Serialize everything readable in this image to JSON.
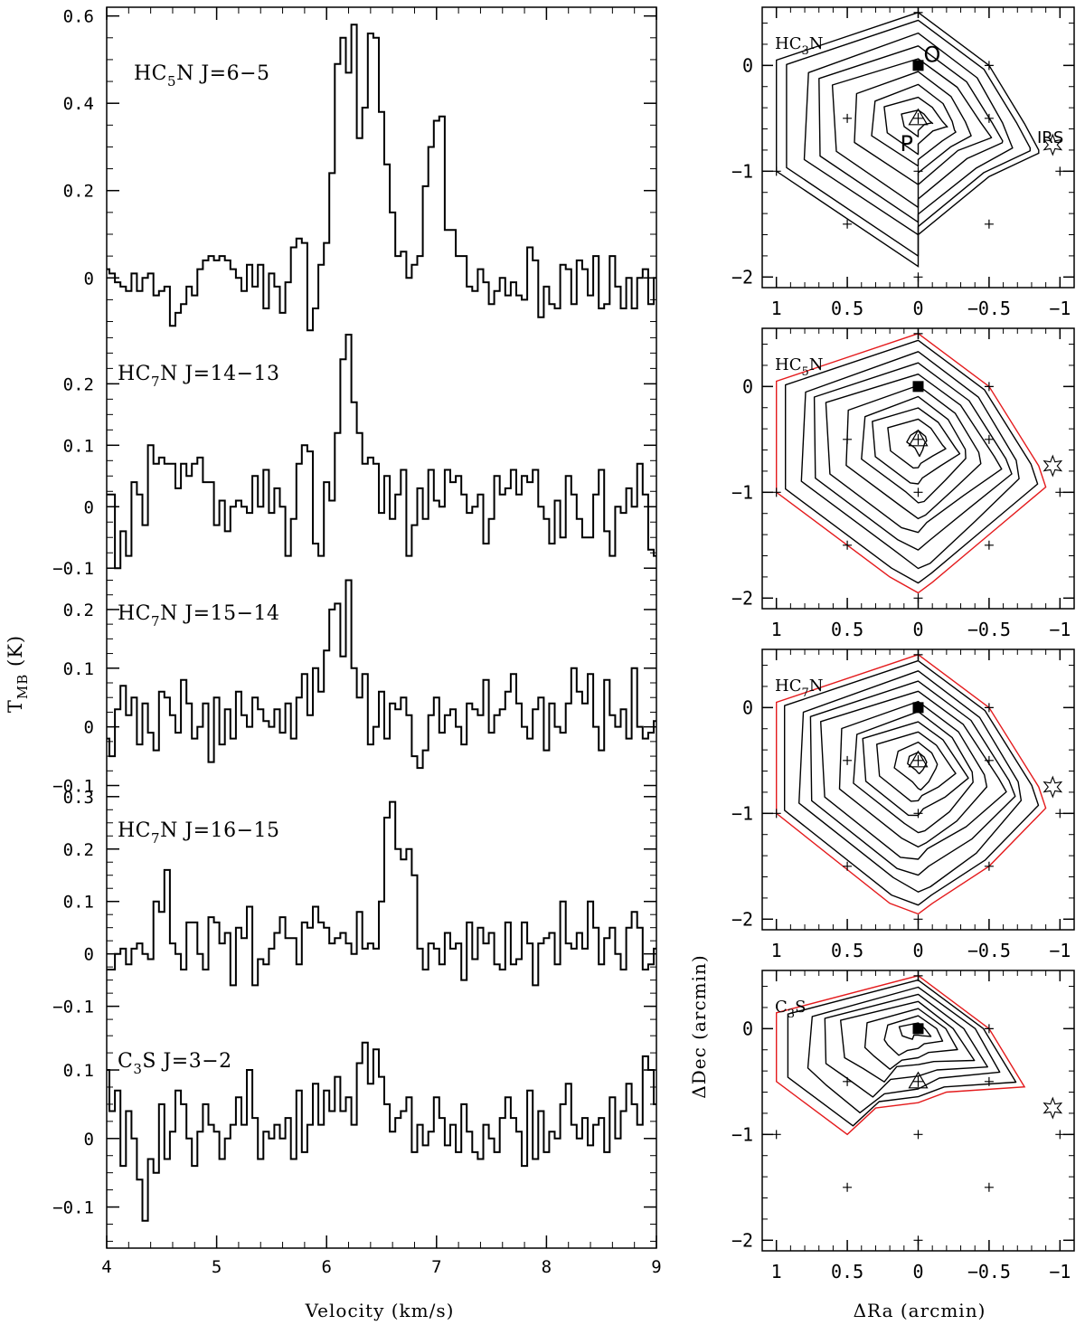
{
  "chart_data": [
    {
      "type": "line",
      "style": "step",
      "panel": "spectrum",
      "label": "HC5N J=6−5",
      "label_parts": [
        "HC",
        "5",
        "N J=6−5"
      ],
      "xlim": [
        4,
        9
      ],
      "ylim": [
        -0.13,
        0.62
      ],
      "yticks": [
        0,
        0.2,
        0.4,
        0.6
      ],
      "ytick_labels": [
        "0",
        "0.2",
        "0.4",
        "0.6"
      ],
      "x_start": 4.0,
      "x_step": 0.05,
      "values": [
        0.02,
        0.01,
        -0.01,
        -0.02,
        -0.03,
        0.01,
        -0.03,
        0.0,
        0.01,
        -0.04,
        -0.03,
        -0.02,
        -0.11,
        -0.08,
        -0.06,
        -0.02,
        -0.04,
        0.02,
        0.04,
        0.05,
        0.04,
        0.05,
        0.04,
        0.02,
        0.0,
        -0.03,
        0.03,
        -0.02,
        0.03,
        -0.07,
        0.01,
        -0.02,
        -0.08,
        -0.01,
        0.07,
        0.09,
        0.08,
        -0.12,
        -0.07,
        0.03,
        0.08,
        0.24,
        0.49,
        0.55,
        0.47,
        0.58,
        0.32,
        0.39,
        0.56,
        0.55,
        0.38,
        0.26,
        0.15,
        0.05,
        0.06,
        0.0,
        0.03,
        0.05,
        0.21,
        0.3,
        0.36,
        0.37,
        0.11,
        0.11,
        0.05,
        0.05,
        -0.02,
        -0.03,
        0.02,
        -0.01,
        -0.06,
        -0.03,
        0.0,
        -0.04,
        -0.01,
        -0.04,
        -0.05,
        0.07,
        0.04,
        -0.09,
        -0.02,
        -0.06,
        -0.07,
        0.03,
        0.02,
        -0.06,
        0.04,
        0.02,
        -0.04,
        0.05,
        -0.07,
        -0.06,
        0.05,
        -0.02,
        -0.07,
        0.0,
        -0.07,
        0.0,
        0.02,
        -0.06,
        0.0
      ]
    },
    {
      "type": "line",
      "style": "step",
      "panel": "spectrum",
      "label": "HC7N J=14−13",
      "label_parts": [
        "HC",
        "7",
        "N J=14−13"
      ],
      "xlim": [
        4,
        9
      ],
      "ylim": [
        -0.11,
        0.28
      ],
      "yticks": [
        -0.1,
        0,
        0.1,
        0.2
      ],
      "ytick_labels": [
        "−0.1",
        "0",
        "0.1",
        "0.2"
      ],
      "x_start": 4.0,
      "x_step": 0.05,
      "values": [
        0.02,
        0.02,
        -0.1,
        -0.04,
        -0.08,
        0.04,
        0.02,
        -0.03,
        0.1,
        0.07,
        0.08,
        0.07,
        0.07,
        0.03,
        0.07,
        0.05,
        0.07,
        0.08,
        0.04,
        0.04,
        -0.03,
        0.01,
        -0.04,
        0.0,
        0.01,
        0.0,
        -0.01,
        0.05,
        0.0,
        0.06,
        -0.01,
        0.03,
        0.0,
        -0.08,
        -0.02,
        0.07,
        0.1,
        0.09,
        -0.06,
        -0.08,
        0.04,
        0.01,
        0.12,
        0.24,
        0.28,
        0.17,
        0.12,
        0.07,
        0.08,
        0.07,
        -0.01,
        0.05,
        -0.02,
        0.02,
        0.06,
        -0.08,
        -0.03,
        0.03,
        -0.02,
        0.06,
        0.01,
        0.0,
        0.06,
        0.04,
        0.05,
        0.02,
        -0.01,
        0.0,
        0.02,
        -0.06,
        -0.02,
        0.05,
        0.02,
        0.03,
        0.06,
        0.02,
        0.05,
        0.04,
        0.06,
        0.0,
        -0.02,
        -0.06,
        0.01,
        -0.05,
        0.05,
        0.02,
        -0.02,
        -0.05,
        -0.05,
        0.02,
        0.06,
        -0.04,
        -0.08,
        0.0,
        -0.01,
        0.03,
        0.0,
        0.07,
        0.02,
        -0.07,
        -0.08
      ]
    },
    {
      "type": "line",
      "style": "step",
      "panel": "spectrum",
      "label": "HC7N J=15−14",
      "label_parts": [
        "HC",
        "7",
        "N J=15−14"
      ],
      "xlim": [
        4,
        9
      ],
      "ylim": [
        -0.11,
        0.26
      ],
      "yticks": [
        -0.1,
        0,
        0.1,
        0.2
      ],
      "ytick_labels": [
        "−0.1",
        "0",
        "0.1",
        "0.2"
      ],
      "x_start": 4.0,
      "x_step": 0.05,
      "values": [
        -0.02,
        -0.05,
        0.03,
        0.07,
        0.02,
        0.05,
        -0.03,
        0.04,
        -0.01,
        -0.04,
        0.06,
        0.05,
        0.02,
        -0.01,
        0.08,
        0.04,
        -0.02,
        0.0,
        0.04,
        -0.06,
        0.05,
        -0.03,
        0.03,
        -0.02,
        0.06,
        0.02,
        0.0,
        0.05,
        0.03,
        0.01,
        0.0,
        0.03,
        -0.01,
        0.04,
        -0.02,
        0.05,
        0.09,
        0.02,
        0.1,
        0.06,
        0.13,
        0.2,
        0.21,
        0.12,
        0.25,
        0.1,
        0.05,
        0.09,
        -0.03,
        0.0,
        0.06,
        -0.02,
        0.04,
        0.03,
        0.05,
        0.02,
        -0.05,
        -0.07,
        -0.04,
        0.02,
        0.05,
        -0.01,
        0.02,
        0.03,
        0.0,
        -0.03,
        0.04,
        0.03,
        0.02,
        0.08,
        -0.01,
        0.02,
        0.03,
        0.06,
        0.09,
        0.04,
        0.0,
        -0.02,
        0.03,
        0.05,
        -0.04,
        0.04,
        0.0,
        -0.01,
        0.04,
        0.1,
        0.06,
        0.04,
        0.09,
        0.0,
        -0.04,
        0.08,
        0.02,
        0.0,
        0.03,
        -0.02,
        0.1,
        0.0,
        -0.02,
        -0.01,
        0.01
      ]
    },
    {
      "type": "line",
      "style": "step",
      "panel": "spectrum",
      "label": "HC7N J=16−15",
      "label_parts": [
        "HC",
        "7",
        "N J=16−15"
      ],
      "xlim": [
        4,
        9
      ],
      "ylim": [
        -0.13,
        0.31
      ],
      "yticks": [
        -0.1,
        0,
        0.1,
        0.2,
        0.3
      ],
      "ytick_labels": [
        "−0.1",
        "0",
        "0.1",
        "0.2",
        "0.3"
      ],
      "x_start": 4.0,
      "x_step": 0.05,
      "values": [
        -0.03,
        -0.03,
        0.0,
        0.01,
        -0.02,
        0.01,
        0.02,
        0.0,
        -0.01,
        0.1,
        0.08,
        0.16,
        0.02,
        0.0,
        -0.03,
        0.06,
        0.06,
        0.0,
        -0.03,
        0.07,
        0.06,
        0.02,
        0.04,
        -0.06,
        0.05,
        0.03,
        0.09,
        -0.06,
        -0.01,
        -0.02,
        0.01,
        0.04,
        0.07,
        0.03,
        0.03,
        -0.02,
        0.06,
        0.05,
        0.09,
        0.06,
        0.05,
        0.02,
        0.03,
        0.04,
        0.02,
        0.0,
        0.08,
        0.01,
        0.02,
        0.01,
        0.1,
        0.26,
        0.29,
        0.2,
        0.18,
        0.2,
        0.15,
        0.01,
        -0.03,
        0.02,
        0.01,
        -0.02,
        0.04,
        0.01,
        0.02,
        -0.05,
        0.06,
        -0.01,
        0.05,
        0.02,
        0.04,
        -0.02,
        -0.03,
        0.06,
        -0.02,
        -0.01,
        0.06,
        0.02,
        -0.06,
        0.02,
        0.03,
        0.04,
        -0.02,
        0.1,
        0.02,
        0.01,
        0.04,
        0.01,
        0.1,
        0.05,
        -0.02,
        0.03,
        0.05,
        0.0,
        -0.03,
        0.05,
        0.08,
        0.05,
        -0.03,
        -0.02,
        0.01
      ]
    },
    {
      "type": "line",
      "style": "step",
      "panel": "spectrum",
      "label": "C3S J=3−2",
      "label_parts": [
        "C",
        "3",
        "S J=3−2"
      ],
      "xlim": [
        4,
        9
      ],
      "ylim": [
        -0.16,
        0.17
      ],
      "yticks": [
        -0.1,
        0,
        0.1
      ],
      "ytick_labels": [
        "−0.1",
        "0",
        "0.1"
      ],
      "x_start": 4.0,
      "x_step": 0.05,
      "values": [
        0.1,
        0.04,
        0.07,
        -0.04,
        0.04,
        0.0,
        -0.06,
        -0.12,
        -0.03,
        -0.05,
        0.05,
        -0.03,
        0.01,
        0.07,
        0.05,
        0.0,
        -0.04,
        0.01,
        0.05,
        0.02,
        0.01,
        -0.03,
        0.0,
        0.02,
        0.06,
        0.02,
        0.1,
        0.03,
        -0.03,
        0.01,
        0.0,
        0.02,
        0.0,
        0.03,
        -0.03,
        0.07,
        -0.02,
        0.02,
        0.08,
        0.02,
        0.07,
        0.04,
        0.09,
        0.04,
        0.06,
        0.02,
        0.11,
        0.14,
        0.08,
        0.13,
        0.09,
        0.05,
        0.01,
        0.03,
        0.04,
        0.06,
        -0.02,
        0.02,
        -0.01,
        0.01,
        0.06,
        0.03,
        -0.01,
        0.02,
        -0.02,
        0.05,
        0.01,
        -0.02,
        -0.03,
        0.02,
        0.0,
        -0.02,
        0.03,
        0.06,
        0.03,
        0.01,
        -0.04,
        0.07,
        -0.03,
        0.04,
        -0.02,
        0.01,
        0.0,
        0.05,
        0.08,
        0.02,
        0.0,
        0.03,
        -0.01,
        0.02,
        0.03,
        -0.02,
        0.06,
        0.0,
        0.04,
        0.08,
        0.05,
        0.02,
        0.12,
        0.1,
        0.05
      ]
    },
    {
      "type": "line",
      "style": "contour",
      "panel": "map",
      "label": "HC3N",
      "label_parts": [
        "HC",
        "3",
        "N"
      ],
      "xlim": [
        1,
        -1
      ],
      "ylim": [
        -2,
        0.5
      ],
      "boundary": [
        [
          0.0,
          0.5
        ],
        [
          -0.5,
          0.0
        ],
        [
          -0.75,
          -0.55
        ],
        [
          -0.85,
          -0.8
        ],
        [
          -0.85,
          -0.83
        ],
        [
          -0.5,
          -1.05
        ],
        [
          0.0,
          -1.6
        ],
        [
          0.0,
          -1.9
        ],
        [
          1.0,
          -1.0
        ],
        [
          1.0,
          0.05
        ]
      ],
      "levels_center": [
        0.0,
        -0.52
      ],
      "n_contours": 8,
      "red_outer": false
    },
    {
      "type": "line",
      "style": "contour",
      "panel": "map",
      "label": "HC5N",
      "label_parts": [
        "HC",
        "5",
        "N"
      ],
      "xlim": [
        1,
        -1
      ],
      "ylim": [
        -2,
        0.5
      ],
      "boundary": [
        [
          0.0,
          0.5
        ],
        [
          -0.5,
          0.0
        ],
        [
          -0.85,
          -0.75
        ],
        [
          -0.9,
          -0.95
        ],
        [
          -0.5,
          -1.4
        ],
        [
          -0.1,
          -1.85
        ],
        [
          0.0,
          -1.95
        ],
        [
          0.2,
          -1.8
        ],
        [
          1.0,
          -1.0
        ],
        [
          1.0,
          0.05
        ]
      ],
      "levels_center": [
        0.0,
        -0.5
      ],
      "n_contours": 9,
      "red_outer": true
    },
    {
      "type": "line",
      "style": "contour",
      "panel": "map",
      "label": "HC7N",
      "label_parts": [
        "HC",
        "7",
        "N"
      ],
      "xlim": [
        1,
        -1
      ],
      "ylim": [
        -2,
        0.5
      ],
      "boundary": [
        [
          0.0,
          0.5
        ],
        [
          -0.5,
          0.0
        ],
        [
          -0.85,
          -0.75
        ],
        [
          -0.9,
          -0.95
        ],
        [
          -0.5,
          -1.5
        ],
        [
          -0.1,
          -1.85
        ],
        [
          0.0,
          -1.95
        ],
        [
          0.2,
          -1.85
        ],
        [
          1.0,
          -1.0
        ],
        [
          1.0,
          0.05
        ]
      ],
      "levels_center": [
        0.0,
        -0.5
      ],
      "n_contours": 10,
      "red_outer": true
    },
    {
      "type": "line",
      "style": "contour",
      "panel": "map",
      "label": "C3S",
      "label_parts": [
        "C",
        "3",
        "S"
      ],
      "xlim": [
        1,
        -1
      ],
      "ylim": [
        -2,
        0.5
      ],
      "boundary": [
        [
          0.0,
          0.5
        ],
        [
          -0.5,
          0.0
        ],
        [
          -0.75,
          -0.55
        ],
        [
          -0.2,
          -0.6
        ],
        [
          0.0,
          -0.7
        ],
        [
          0.3,
          -0.75
        ],
        [
          0.5,
          -1.0
        ],
        [
          0.8,
          -0.7
        ],
        [
          1.0,
          -0.5
        ],
        [
          1.0,
          0.15
        ]
      ],
      "levels_center": [
        0.0,
        0.0
      ],
      "n_contours": 7,
      "red_outer": true
    }
  ],
  "spectra_axes": {
    "xlabel": "Velocity (km/s)",
    "ylabel_main": "T",
    "ylabel_sub": "MB",
    "ylabel_unit": " (K)",
    "xticks": [
      4,
      5,
      6,
      7,
      8,
      9
    ],
    "xtick_labels": [
      "4",
      "5",
      "6",
      "7",
      "8",
      "9"
    ]
  },
  "map_axes": {
    "xlabel": "ΔRa (arcmin)",
    "ylabel": "ΔDec (arcmin)",
    "xticks": [
      1,
      0.5,
      0,
      -0.5,
      -1
    ],
    "xtick_labels": [
      "1",
      "0.5",
      "0",
      "−0.5",
      "−1"
    ],
    "yticks": [
      0,
      -1,
      -2
    ],
    "ytick_labels": [
      "0",
      "−1",
      "−2"
    ],
    "grid_points": [
      [
        0,
        0.5
      ],
      [
        -0.5,
        0
      ],
      [
        0.5,
        -0.5
      ],
      [
        -0.5,
        -0.5
      ],
      [
        1,
        -1
      ],
      [
        0,
        -1
      ],
      [
        -1,
        -1
      ],
      [
        0.5,
        -1.5
      ],
      [
        -0.5,
        -1.5
      ],
      [
        0,
        -2
      ]
    ],
    "square_marker": [
      0,
      0
    ],
    "triangle_marker": [
      0,
      -0.5
    ],
    "star_marker": [
      -1.0,
      -0.75
    ],
    "point_labels": {
      "O": "O",
      "P": "P",
      "IRS": "IRS"
    }
  }
}
